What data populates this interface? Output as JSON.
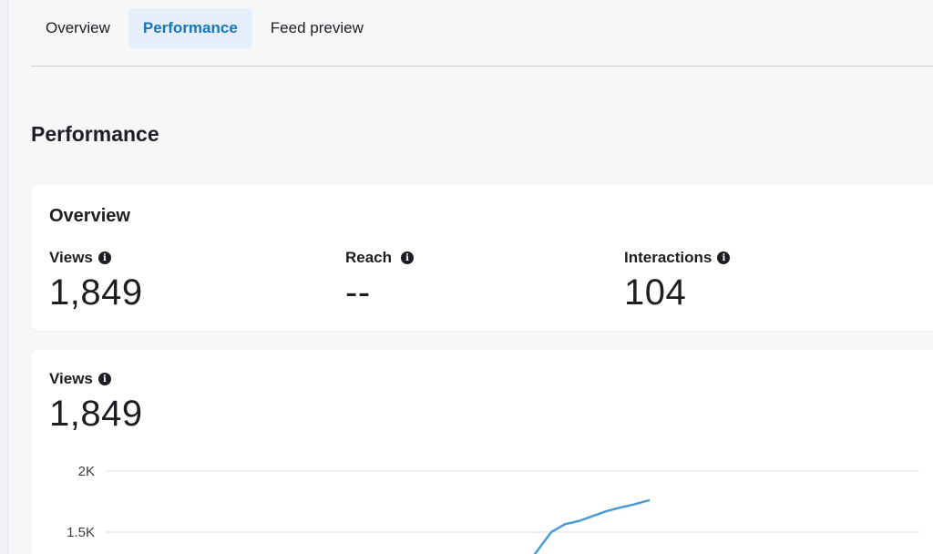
{
  "tabs": [
    {
      "label": "Overview",
      "active": false
    },
    {
      "label": "Performance",
      "active": true
    },
    {
      "label": "Feed preview",
      "active": false
    }
  ],
  "section_title": "Performance",
  "overview_card": {
    "title": "Overview",
    "metrics": [
      {
        "label": "Views",
        "value": "1,849",
        "icon": "info-icon"
      },
      {
        "label": "Reach",
        "value": "--",
        "icon": "info-icon"
      },
      {
        "label": "Interactions",
        "value": "104",
        "icon": "info-icon"
      }
    ]
  },
  "views_card": {
    "label": "Views",
    "value": "1,849",
    "icon": "info-icon"
  },
  "chart_data": {
    "type": "line",
    "ytick_labels": [
      "2K",
      "1.5K"
    ],
    "yticks": [
      2000,
      1500
    ],
    "series": [
      {
        "color": "#4a9bd1",
        "points": [
          [
            0.58,
            1250
          ],
          [
            0.605,
            1500
          ],
          [
            0.62,
            1565
          ],
          [
            0.635,
            1590
          ],
          [
            0.65,
            1630
          ],
          [
            0.665,
            1670
          ],
          [
            0.68,
            1700
          ],
          [
            0.695,
            1725
          ],
          [
            0.712,
            1760
          ]
        ]
      }
    ],
    "grid": true
  },
  "colors": {
    "accent": "#1877b9",
    "tab_active_bg": "#e4effa",
    "line": "#4a9bd1"
  }
}
